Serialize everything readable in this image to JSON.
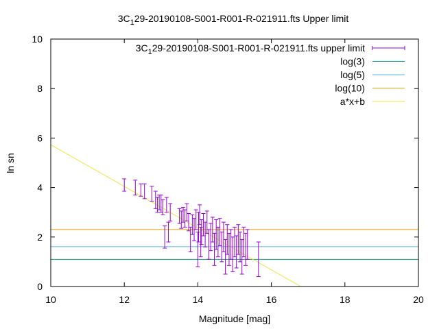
{
  "chart_data": {
    "type": "scatter",
    "title": "3C_129-20190108-S001-R001-R-021911.fts Upper limit",
    "title_parts": [
      "3C",
      "1",
      "29-20190108-S001-R001-R-021911.fts Upper limit"
    ],
    "xlabel": "Magnitude [mag]",
    "ylabel": "ln sn",
    "xlim": [
      10,
      20
    ],
    "ylim": [
      0,
      10
    ],
    "xticks": [
      "10",
      "12",
      "14",
      "16",
      "18",
      "20"
    ],
    "yticks": [
      "0",
      "2",
      "4",
      "6",
      "8",
      "10"
    ],
    "grid": false,
    "legend_position": "top-right",
    "series": [
      {
        "name": "3C_129-20190108-S001-R001-R-021911.fts upper limit",
        "name_parts": [
          "3C",
          "1",
          "29-20190108-S001-R001-R-021911.fts upper limit"
        ],
        "kind": "errorbars",
        "color": "#9400d3",
        "points": [
          [
            12.0,
            4.1,
            0.25
          ],
          [
            12.3,
            4.0,
            0.3
          ],
          [
            12.45,
            3.9,
            0.25
          ],
          [
            12.55,
            3.85,
            0.3
          ],
          [
            12.75,
            3.75,
            0.3
          ],
          [
            12.85,
            3.5,
            0.35
          ],
          [
            12.9,
            3.3,
            0.3
          ],
          [
            12.95,
            3.4,
            0.3
          ],
          [
            13.0,
            3.35,
            0.35
          ],
          [
            13.05,
            3.2,
            0.3
          ],
          [
            13.1,
            2.0,
            0.45
          ],
          [
            13.15,
            3.3,
            0.3
          ],
          [
            13.2,
            2.2,
            0.4
          ],
          [
            13.25,
            3.0,
            0.35
          ],
          [
            13.5,
            2.85,
            0.3
          ],
          [
            13.55,
            2.7,
            0.35
          ],
          [
            13.6,
            2.9,
            0.3
          ],
          [
            13.65,
            2.75,
            0.35
          ],
          [
            13.7,
            3.0,
            0.35
          ],
          [
            13.75,
            2.6,
            0.35
          ],
          [
            13.8,
            1.9,
            0.5
          ],
          [
            13.85,
            2.5,
            0.4
          ],
          [
            13.9,
            2.3,
            0.45
          ],
          [
            13.95,
            2.7,
            0.4
          ],
          [
            14.0,
            1.5,
            0.7
          ],
          [
            14.02,
            2.4,
            0.6
          ],
          [
            14.05,
            2.9,
            0.4
          ],
          [
            14.08,
            1.8,
            0.6
          ],
          [
            14.1,
            2.2,
            0.5
          ],
          [
            14.15,
            2.5,
            0.45
          ],
          [
            14.2,
            2.1,
            0.5
          ],
          [
            14.25,
            2.6,
            0.45
          ],
          [
            14.3,
            1.7,
            0.6
          ],
          [
            14.35,
            2.0,
            0.55
          ],
          [
            14.4,
            2.3,
            0.5
          ],
          [
            14.45,
            1.5,
            0.65
          ],
          [
            14.5,
            2.1,
            0.6
          ],
          [
            14.55,
            1.8,
            0.6
          ],
          [
            14.6,
            2.2,
            0.55
          ],
          [
            14.65,
            1.6,
            0.6
          ],
          [
            14.7,
            2.0,
            0.6
          ],
          [
            14.75,
            1.2,
            0.7
          ],
          [
            14.8,
            1.9,
            0.6
          ],
          [
            14.85,
            1.5,
            0.65
          ],
          [
            14.9,
            1.7,
            0.6
          ],
          [
            14.95,
            1.3,
            0.7
          ],
          [
            15.0,
            1.8,
            0.6
          ],
          [
            15.05,
            1.4,
            0.65
          ],
          [
            15.1,
            1.9,
            0.6
          ],
          [
            15.15,
            1.6,
            0.6
          ],
          [
            15.2,
            1.2,
            0.7
          ],
          [
            15.25,
            1.8,
            0.6
          ],
          [
            15.3,
            1.5,
            0.65
          ],
          [
            15.35,
            1.7,
            0.6
          ],
          [
            15.65,
            1.1,
            0.7
          ]
        ]
      },
      {
        "name": "log(3)",
        "kind": "hline",
        "y": 1.0986,
        "color": "#009e73"
      },
      {
        "name": "log(5)",
        "kind": "hline",
        "y": 1.6094,
        "color": "#56b4e9"
      },
      {
        "name": "log(10)",
        "kind": "hline",
        "y": 2.3026,
        "color": "#e69f00"
      },
      {
        "name": "a*x+b",
        "kind": "line",
        "x": [
          10,
          16.8
        ],
        "y": [
          5.73,
          0.0
        ],
        "color": "#f0e442"
      }
    ]
  }
}
